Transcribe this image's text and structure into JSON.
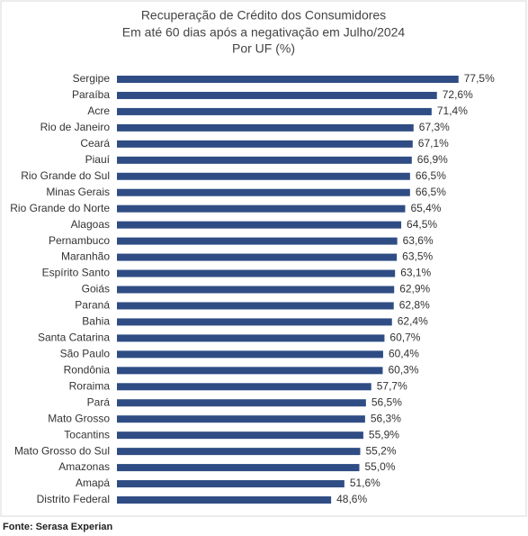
{
  "chart_data": {
    "type": "hbar",
    "title_lines": [
      "Recuperação de Crédito dos Consumidores",
      "Em até 60 dias após a negativação em Julho/2024",
      "Por UF (%)"
    ],
    "categories": [
      "Sergipe",
      "Paraíba",
      "Acre",
      "Rio de Janeiro",
      "Ceará",
      "Piauí",
      "Rio Grande do Sul",
      "Minas Gerais",
      "Rio Grande do Norte",
      "Alagoas",
      "Pernambuco",
      "Maranhão",
      "Espírito Santo",
      "Goiás",
      "Paraná",
      "Bahia",
      "Santa Catarina",
      "São Paulo",
      "Rondônia",
      "Roraima",
      "Pará",
      "Mato Grosso",
      "Tocantins",
      "Mato Grosso do Sul",
      "Amazonas",
      "Amapá",
      "Distrito Federal"
    ],
    "values": [
      77.5,
      72.6,
      71.4,
      67.3,
      67.1,
      66.9,
      66.5,
      66.5,
      65.4,
      64.5,
      63.6,
      63.5,
      63.1,
      62.9,
      62.8,
      62.4,
      60.7,
      60.4,
      60.3,
      57.7,
      56.5,
      56.3,
      55.9,
      55.2,
      55.0,
      51.6,
      48.6
    ],
    "value_labels": [
      "77,5%",
      "72,6%",
      "71,4%",
      "67,3%",
      "67,1%",
      "66,9%",
      "66,5%",
      "66,5%",
      "65,4%",
      "64,5%",
      "63,6%",
      "63,5%",
      "63,1%",
      "62,9%",
      "62,8%",
      "62,4%",
      "60,7%",
      "60,4%",
      "60,3%",
      "57,7%",
      "56,5%",
      "56,3%",
      "55,9%",
      "55,2%",
      "55,0%",
      "51,6%",
      "48,6%"
    ],
    "color": "#2f4d84",
    "source": "Fonte: Serasa Experian"
  }
}
